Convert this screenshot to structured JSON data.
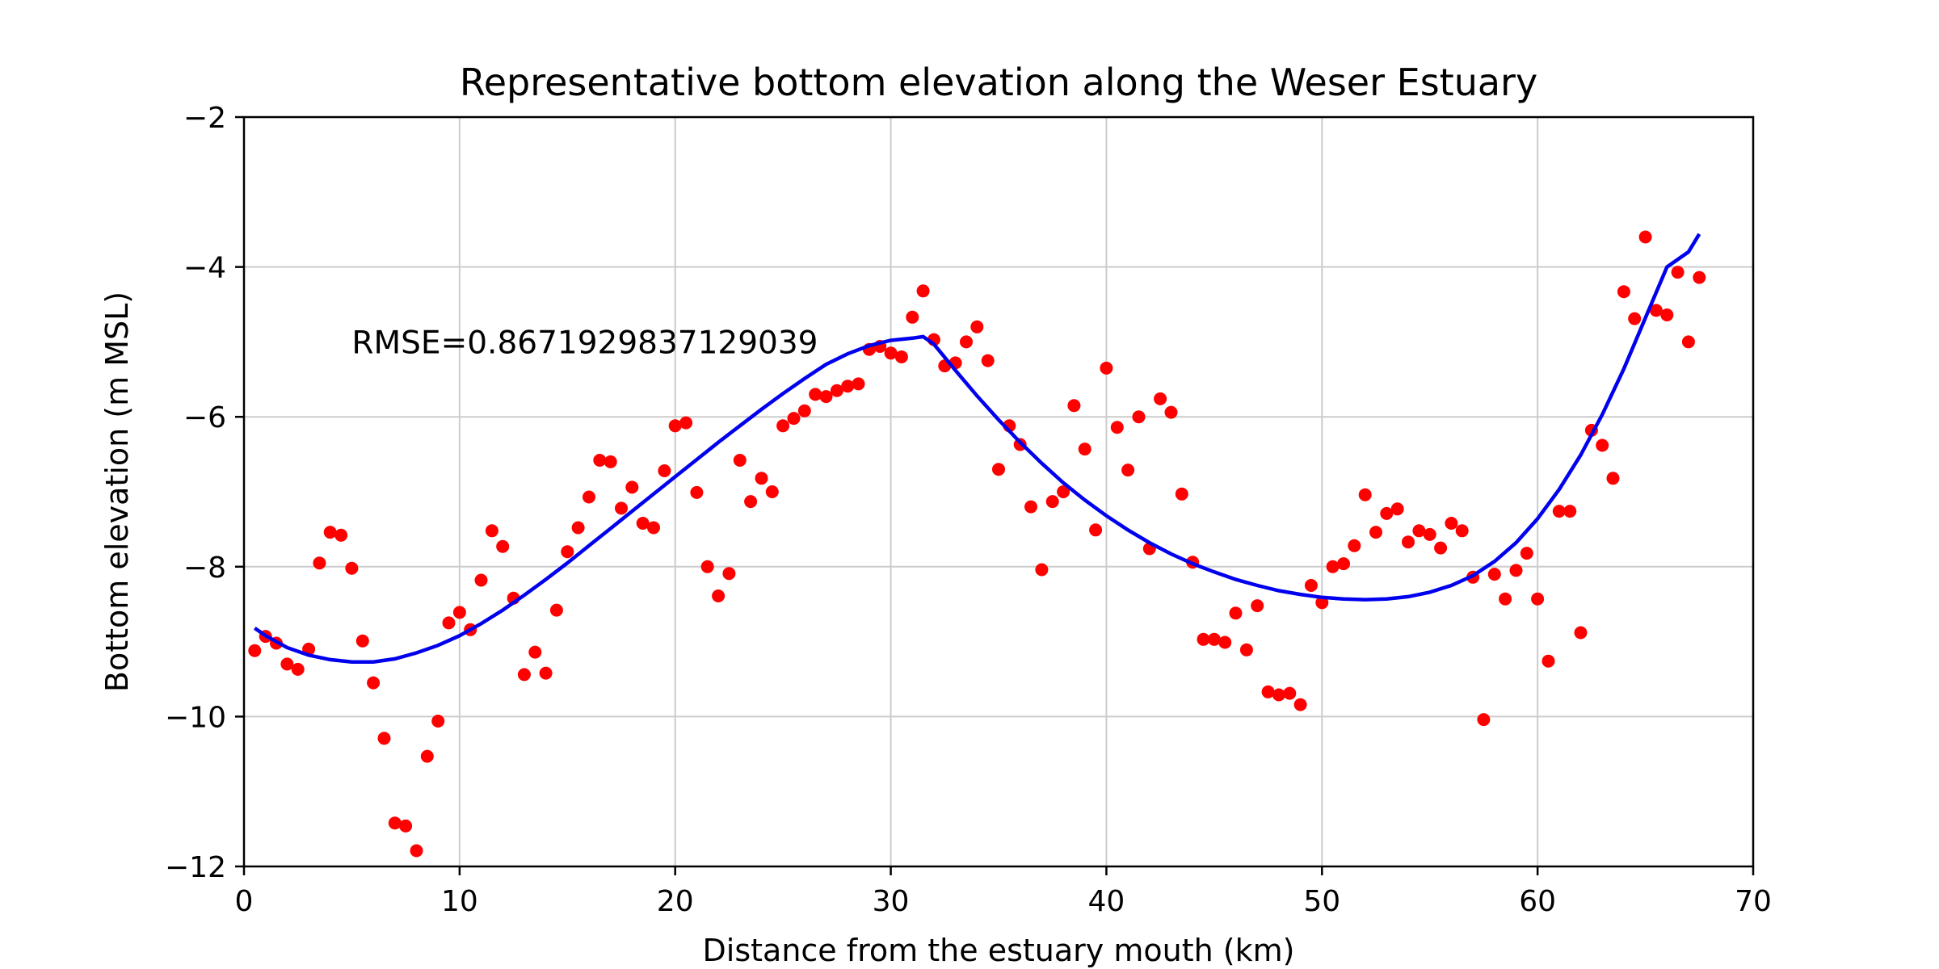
{
  "chart_data": {
    "type": "scatter",
    "title": "Representative bottom elevation along the Weser Estuary",
    "xlabel": "Distance from the estuary mouth (km)",
    "ylabel": "Bottom elevation (m MSL)",
    "xlim": [
      0,
      70
    ],
    "ylim": [
      -12,
      -2
    ],
    "xticks": [
      0,
      10,
      20,
      30,
      40,
      50,
      60,
      70
    ],
    "yticks": [
      -12,
      -10,
      -8,
      -6,
      -4,
      -2
    ],
    "xtick_labels": [
      "0",
      "10",
      "20",
      "30",
      "40",
      "50",
      "60",
      "70"
    ],
    "ytick_labels": [
      "−12",
      "−10",
      "−8",
      "−6",
      "−4",
      "−2"
    ],
    "grid": true,
    "annotation": {
      "text": "RMSE=0.8671929837129039",
      "x": 5,
      "y": -5
    },
    "series": [
      {
        "type": "scatter",
        "color": "#ff0000",
        "x": [
          0.5,
          1,
          1.5,
          2,
          2.5,
          3,
          3.5,
          4,
          4.5,
          5,
          5.5,
          6,
          6.5,
          7,
          7.5,
          8,
          8.5,
          9,
          9.5,
          10,
          10.5,
          11,
          11.5,
          12,
          12.5,
          13,
          13.5,
          14,
          14.5,
          15,
          15.5,
          16,
          16.5,
          17,
          17.5,
          18,
          18.5,
          19,
          19.5,
          20,
          20.5,
          21,
          21.5,
          22,
          22.5,
          23,
          23.5,
          24,
          24.5,
          25,
          25.5,
          26,
          26.5,
          27,
          27.5,
          28,
          28.5,
          29,
          29.5,
          30,
          30.5,
          31,
          31.5,
          32,
          32.5,
          33,
          33.5,
          34,
          34.5,
          35,
          35.5,
          36,
          36.5,
          37,
          37.5,
          38,
          38.5,
          39,
          39.5,
          40,
          40.5,
          41,
          41.5,
          42,
          42.5,
          43,
          43.5,
          44,
          44.5,
          45,
          45.5,
          46,
          46.5,
          47,
          47.5,
          48,
          48.5,
          49,
          49.5,
          50,
          50.5,
          51,
          51.5,
          52,
          52.5,
          53,
          53.5,
          54,
          54.5,
          55,
          55.5,
          56,
          56.5,
          57,
          57.5,
          58,
          58.5,
          59,
          59.5,
          60,
          60.5,
          61,
          61.5,
          62,
          62.5,
          63,
          63.5,
          64,
          64.5,
          65,
          65.5,
          66,
          66.5,
          67,
          67.5
        ],
        "y": [
          -9.12,
          -8.93,
          -9.02,
          -9.3,
          -9.37,
          -9.1,
          -7.95,
          -7.54,
          -7.58,
          -8.02,
          -8.99,
          -9.55,
          -10.29,
          -11.42,
          -11.46,
          -11.79,
          -10.53,
          -10.06,
          -8.75,
          -8.61,
          -8.84,
          -8.18,
          -7.52,
          -7.73,
          -8.42,
          -9.44,
          -9.14,
          -9.42,
          -8.58,
          -7.8,
          -7.48,
          -7.07,
          -6.58,
          -6.6,
          -7.22,
          -6.94,
          -7.42,
          -7.48,
          -6.72,
          -6.12,
          -6.08,
          -7.01,
          -8.0,
          -8.39,
          -8.09,
          -6.58,
          -7.13,
          -6.82,
          -7.0,
          -6.12,
          -6.02,
          -5.92,
          -5.7,
          -5.73,
          -5.65,
          -5.59,
          -5.56,
          -5.1,
          -5.06,
          -5.15,
          -5.2,
          -4.67,
          -4.32,
          -4.97,
          -5.32,
          -5.28,
          -5.0,
          -4.8,
          -5.25,
          -6.7,
          -6.12,
          -6.37,
          -7.2,
          -8.04,
          -7.13,
          -7.0,
          -5.85,
          -6.43,
          -7.51,
          -5.35,
          -6.14,
          -6.71,
          -6.0,
          -7.76,
          -5.76,
          -5.94,
          -7.03,
          -7.94,
          -8.97,
          -8.97,
          -9.01,
          -8.62,
          -9.11,
          -8.52,
          -9.67,
          -9.71,
          -9.69,
          -9.84,
          -8.25,
          -8.48,
          -8.0,
          -7.96,
          -7.72,
          -7.04,
          -7.54,
          -7.29,
          -7.23,
          -7.67,
          -7.52,
          -7.57,
          -7.75,
          -7.42,
          -7.52,
          -8.14,
          -10.04,
          -8.1,
          -8.43,
          -8.05,
          -7.82,
          -8.43,
          -9.26,
          -7.26,
          -7.26,
          -8.88,
          -6.18,
          -6.38,
          -6.82,
          -4.33,
          -4.69,
          -3.6,
          -4.58,
          -4.64,
          -4.07,
          -5.0,
          -4.14
        ]
      },
      {
        "type": "line",
        "color": "#0000ee",
        "x": [
          0.5,
          1,
          2,
          3,
          4,
          5,
          6,
          7,
          8,
          9,
          10,
          11,
          12,
          13,
          14,
          15,
          16,
          17,
          18,
          19,
          20,
          21,
          22,
          23,
          24,
          25,
          26,
          27,
          28,
          29,
          30,
          31,
          31.5,
          32,
          33,
          34,
          35,
          36,
          37,
          38,
          39,
          40,
          41,
          42,
          43,
          44,
          45,
          46,
          47,
          48,
          49,
          50,
          51,
          52,
          53,
          54,
          55,
          56,
          57,
          58,
          59,
          60,
          61,
          62,
          63,
          64,
          65,
          66,
          67,
          67.5
        ],
        "y": [
          -8.82,
          -8.92,
          -9.08,
          -9.18,
          -9.24,
          -9.27,
          -9.27,
          -9.23,
          -9.15,
          -9.05,
          -8.92,
          -8.76,
          -8.58,
          -8.38,
          -8.17,
          -7.95,
          -7.72,
          -7.49,
          -7.26,
          -7.03,
          -6.8,
          -6.57,
          -6.34,
          -6.12,
          -5.9,
          -5.69,
          -5.49,
          -5.3,
          -5.16,
          -5.05,
          -4.98,
          -4.95,
          -4.93,
          -5.03,
          -5.38,
          -5.72,
          -6.04,
          -6.34,
          -6.62,
          -6.88,
          -7.11,
          -7.32,
          -7.51,
          -7.68,
          -7.83,
          -7.96,
          -8.07,
          -8.17,
          -8.25,
          -8.32,
          -8.37,
          -8.41,
          -8.43,
          -8.44,
          -8.43,
          -8.4,
          -8.34,
          -8.25,
          -8.12,
          -7.93,
          -7.68,
          -7.36,
          -6.97,
          -6.51,
          -5.97,
          -5.36,
          -4.68,
          -4.0,
          -3.8,
          -3.56
        ]
      }
    ]
  }
}
